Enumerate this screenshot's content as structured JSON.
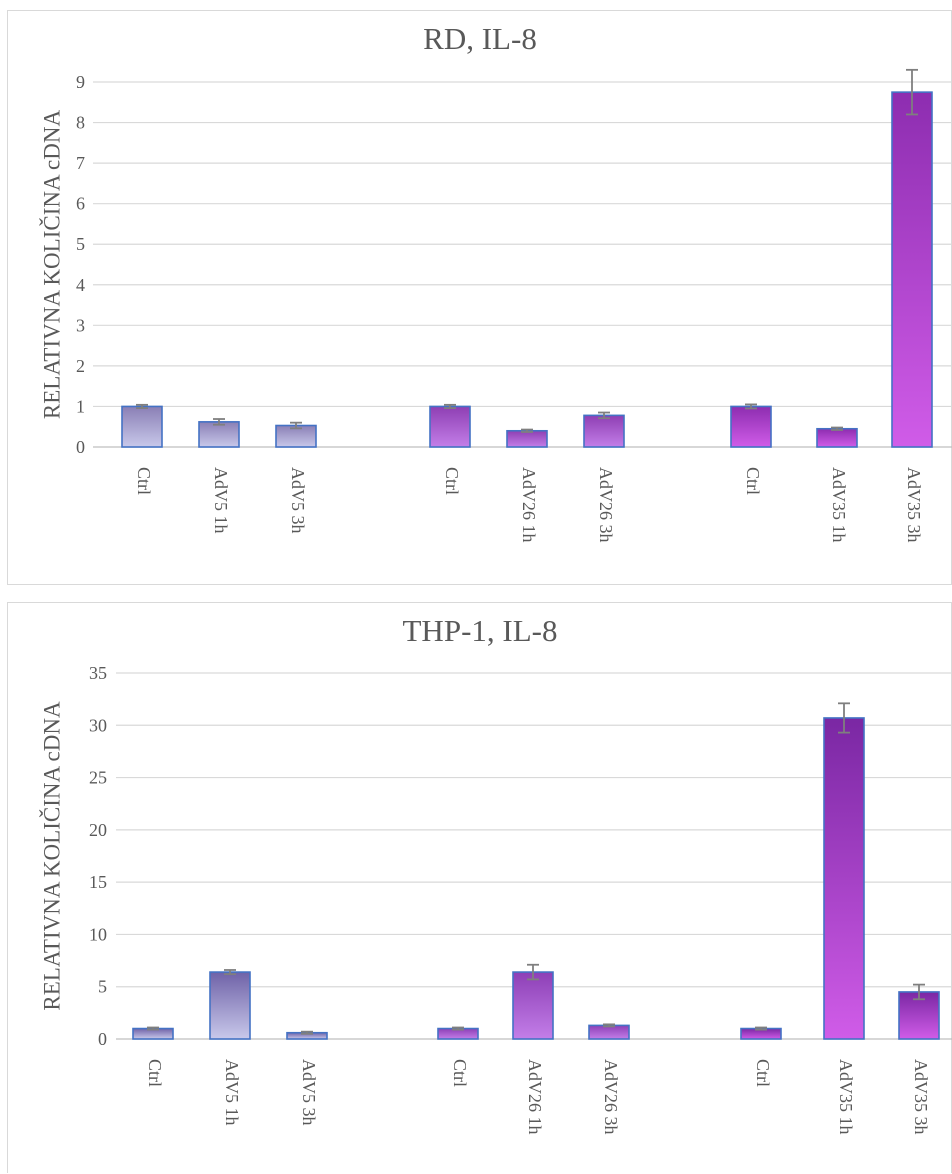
{
  "chart_data": [
    {
      "type": "bar",
      "title": "RD, IL-8",
      "xlabel": "",
      "ylabel": "RELATIVNA KOLIČINA cDNA",
      "ylim": [
        0,
        9
      ],
      "yticks": [
        0,
        1,
        2,
        3,
        4,
        5,
        6,
        7,
        8,
        9
      ],
      "grid": true,
      "legend": "none",
      "categories": [
        "Ctrl",
        "AdV5 1h",
        "AdV5 3h",
        "Ctrl",
        "AdV26 1h",
        "AdV26 3h",
        "Ctrl",
        "AdV35 1h",
        "AdV35 3h"
      ],
      "groups": [
        3,
        3,
        3
      ],
      "values": [
        1.0,
        0.62,
        0.53,
        1.0,
        0.4,
        0.78,
        1.0,
        0.45,
        8.75
      ],
      "errors": [
        0.04,
        0.07,
        0.07,
        0.04,
        0.03,
        0.07,
        0.05,
        0.03,
        0.55
      ],
      "colors": {
        "group_top": [
          "#8a7fb5",
          "#8e3fb3",
          "#8d2db0"
        ],
        "group_bottom": [
          "#c8c8ea",
          "#c37ee8",
          "#d05ce8"
        ],
        "bar_edge": "#4472c4",
        "error_bar": "#7f7f7f"
      }
    },
    {
      "type": "bar",
      "title": "THP-1, IL-8",
      "xlabel": "",
      "ylabel": "RELATIVNA KOLIČINA cDNA",
      "ylim": [
        0,
        35
      ],
      "yticks": [
        0,
        5,
        10,
        15,
        20,
        25,
        30,
        35
      ],
      "grid": true,
      "legend": "none",
      "categories": [
        "Ctrl",
        "AdV5 1h",
        "AdV5 3h",
        "Ctrl",
        "AdV26 1h",
        "AdV26 3h",
        "Ctrl",
        "AdV35 1h",
        "AdV35 3h"
      ],
      "groups": [
        3,
        3,
        3
      ],
      "values": [
        1.0,
        6.4,
        0.6,
        1.0,
        6.4,
        1.3,
        1.0,
        30.7,
        4.5
      ],
      "errors": [
        0.1,
        0.2,
        0.1,
        0.1,
        0.7,
        0.1,
        0.1,
        1.4,
        0.7
      ],
      "colors": {
        "group_top": [
          "#6f62a8",
          "#8d3fb6",
          "#7a27a3"
        ],
        "group_bottom": [
          "#c8c8ea",
          "#c37ee8",
          "#d05ce8"
        ],
        "bar_edge": "#4472c4",
        "error_bar": "#7f7f7f"
      }
    }
  ]
}
